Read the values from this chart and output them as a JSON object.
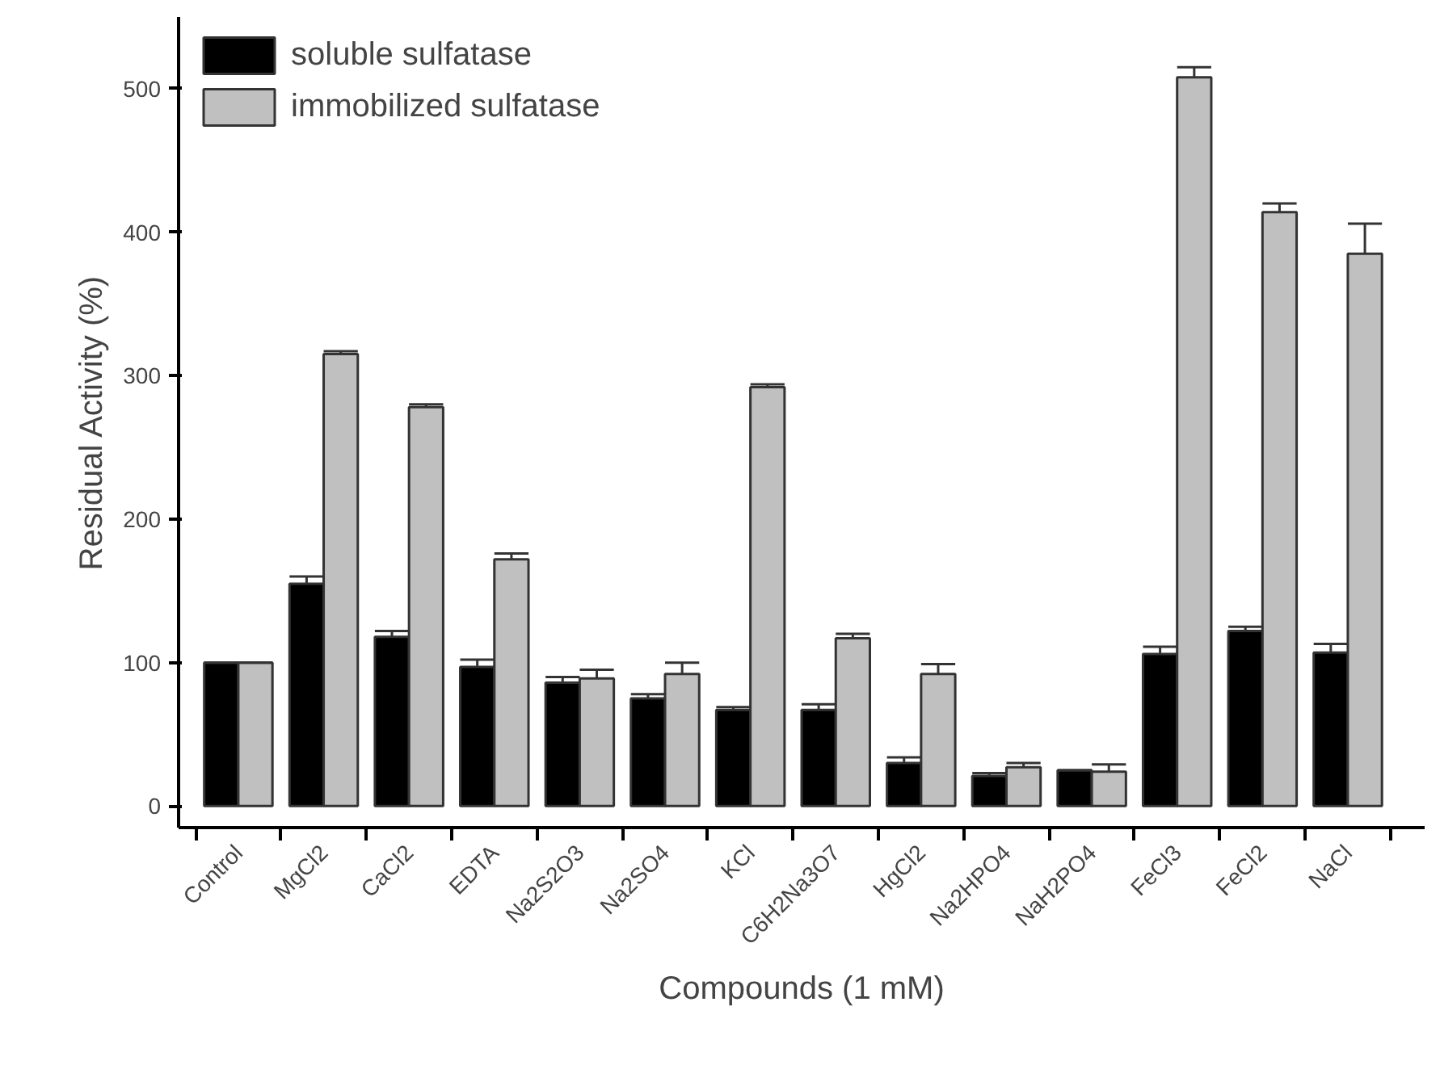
{
  "chart_data": {
    "type": "bar",
    "xlabel": "Compounds (1 mM)",
    "ylabel": "Residual Activity (%)",
    "categories": [
      "Control",
      "MgCl2",
      "CaCl2",
      "EDTA",
      "Na2S2O3",
      "Na2SO4",
      "KCl",
      "C6H2Na3O7",
      "HgCl2",
      "Na2HPO4",
      "NaH2PO4",
      "FeCl3",
      "FeCl2",
      "NaCl"
    ],
    "series": [
      {
        "name": "soluble sulfatase",
        "color": "#000000",
        "values": [
          100,
          155,
          118,
          97,
          86,
          75,
          67,
          67,
          30,
          21,
          25,
          106,
          122,
          107
        ],
        "errors": [
          0,
          5,
          4,
          5,
          4,
          3,
          2,
          4,
          4,
          2,
          0,
          5,
          3,
          6
        ]
      },
      {
        "name": "immobilized sulfatase",
        "color": "#c0c0c0",
        "values": [
          100,
          315,
          278,
          172,
          89,
          92,
          292,
          117,
          92,
          27,
          24,
          508,
          414,
          385
        ],
        "errors": [
          0,
          2,
          2,
          4,
          6,
          8,
          2,
          3,
          7,
          3,
          5,
          7,
          6,
          21
        ]
      }
    ],
    "ylim": [
      -15,
      550
    ],
    "yticks": [
      0,
      100,
      200,
      300,
      400,
      500
    ],
    "grid": false,
    "legend": "top left"
  }
}
